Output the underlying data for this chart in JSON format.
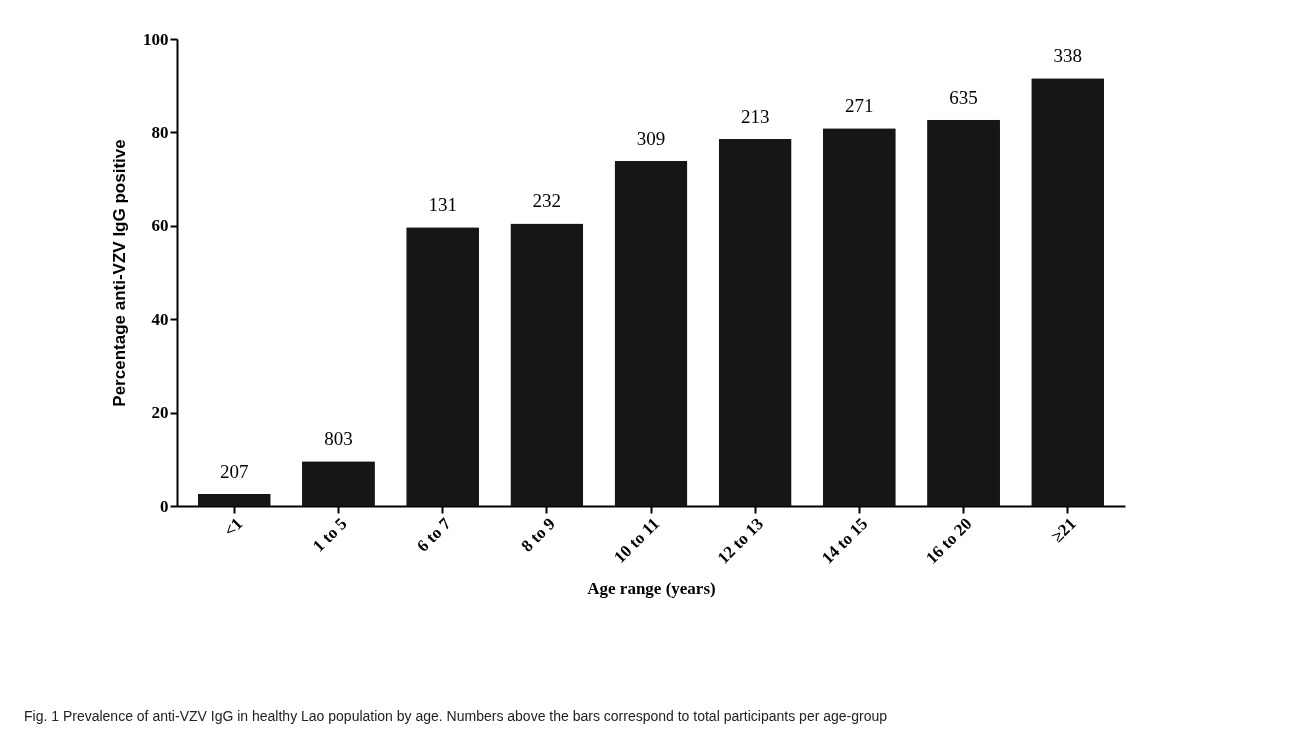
{
  "chart_data": {
    "type": "bar",
    "xlabel": "Age range (years)",
    "ylabel": "Percentage anti-VZV IgG positive",
    "categories": [
      "<1",
      "1 to 5",
      "6 to 7",
      "8 to 9",
      "10 to 11",
      "12 to 13",
      "14 to 15",
      "16 to 20",
      "≥21"
    ],
    "values": [
      2.6,
      9.6,
      59.7,
      60.5,
      73.9,
      78.6,
      80.9,
      82.7,
      91.6
    ],
    "color": "#161616",
    "ylim": [
      0,
      100
    ],
    "yticks": [
      0,
      20,
      40,
      60,
      80,
      100
    ],
    "annotations": [
      {
        "text": "207",
        "x": "<1",
        "y": 2.6
      },
      {
        "text": "803",
        "x": "1 to 5",
        "y": 9.6
      },
      {
        "text": "131",
        "x": "6 to 7",
        "y": 59.7
      },
      {
        "text": "232",
        "x": "8 to 9",
        "y": 60.5
      },
      {
        "text": "309",
        "x": "10 to 11",
        "y": 73.9
      },
      {
        "text": "213",
        "x": "12 to 13",
        "y": 78.6
      },
      {
        "text": "271",
        "x": "14 to 15",
        "y": 80.9
      },
      {
        "text": "635",
        "x": "16 to 20",
        "y": 82.7
      },
      {
        "text": "338",
        "x": "≥21",
        "y": 91.6
      },
      "Fig. 1 Prevalence of anti-VZV IgG in healthy Lao population by age. Numbers above the bars correspond to total participants per age-group"
    ]
  }
}
